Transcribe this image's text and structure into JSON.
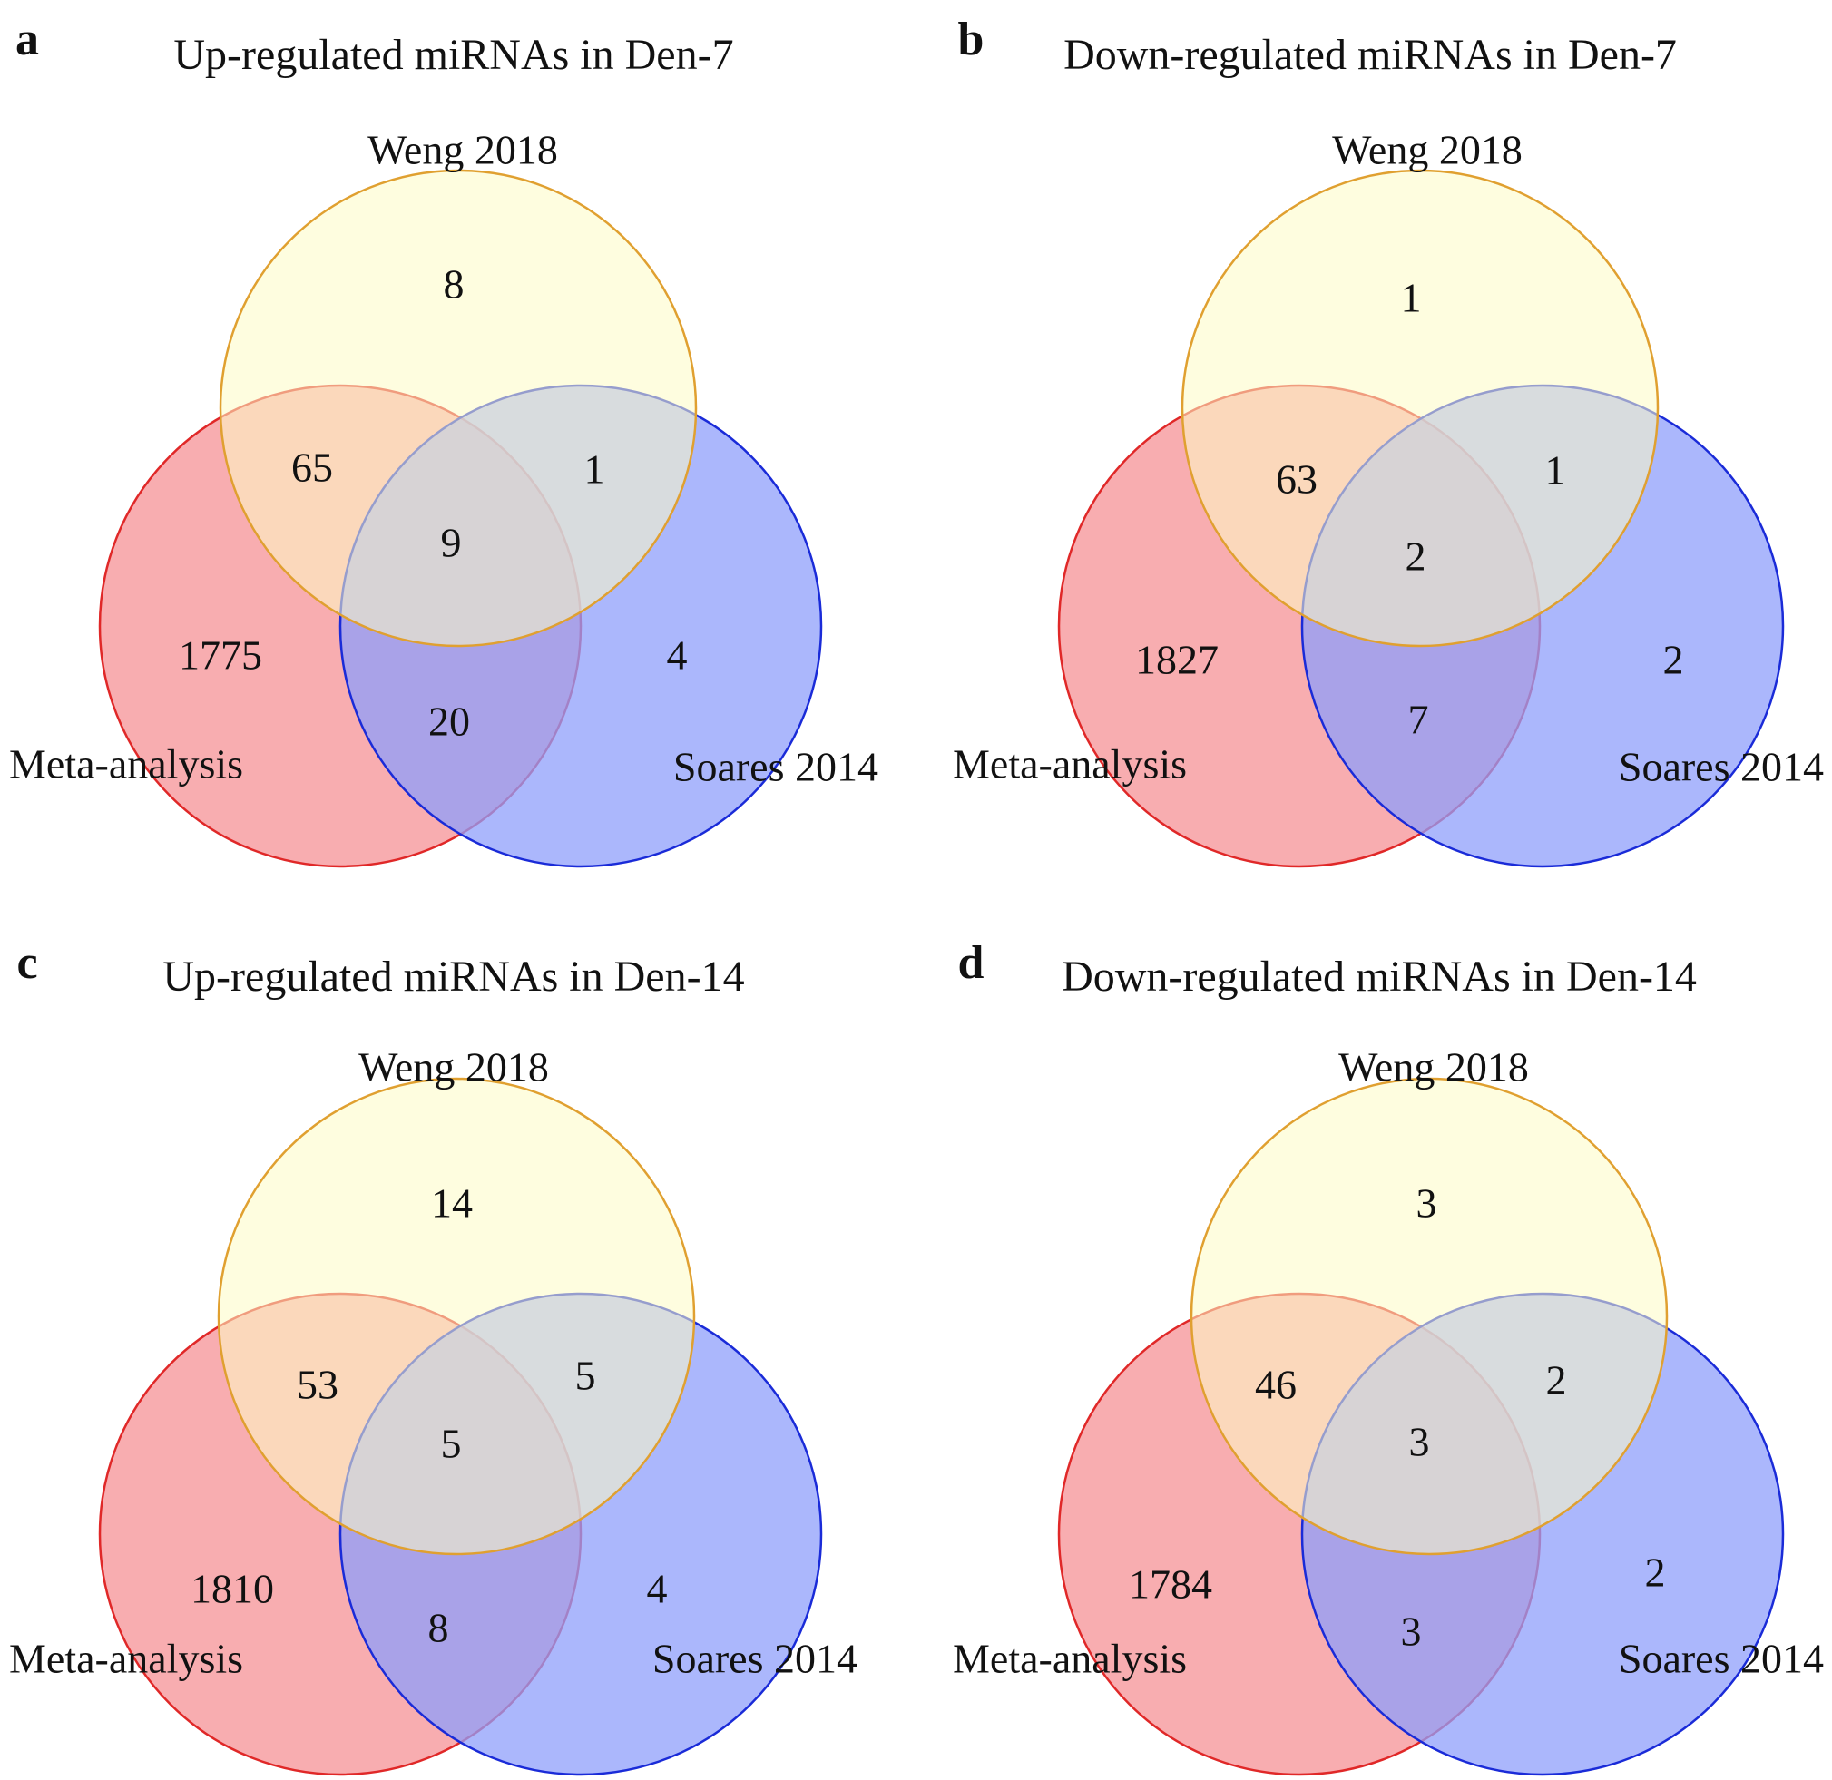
{
  "colors": {
    "weng_fill": "#fdfcc4",
    "weng_stroke": "#e0a030",
    "meta_fill": "#f58a8e",
    "meta_stroke": "#e02828",
    "soares_fill": "#8f9ffb",
    "soares_stroke": "#1a2bd8"
  },
  "panels": [
    {
      "letter": "a",
      "title": "Up-regulated miRNAs in Den-7",
      "sets": {
        "top": "Weng 2018",
        "left": "Meta-analysis",
        "right": "Soares 2014"
      },
      "counts": {
        "top_only": "8",
        "left_only": "1775",
        "right_only": "4",
        "top_left": "65",
        "top_right": "1",
        "left_right": "20",
        "all": "9"
      }
    },
    {
      "letter": "b",
      "title": "Down-regulated miRNAs in Den-7",
      "sets": {
        "top": "Weng 2018",
        "left": "Meta-analysis",
        "right": "Soares 2014"
      },
      "counts": {
        "top_only": "1",
        "left_only": "1827",
        "right_only": "2",
        "top_left": "63",
        "top_right": "1",
        "left_right": "7",
        "all": "2"
      }
    },
    {
      "letter": "c",
      "title": "Up-regulated miRNAs in Den-14",
      "sets": {
        "top": "Weng 2018",
        "left": "Meta-analysis",
        "right": "Soares 2014"
      },
      "counts": {
        "top_only": "14",
        "left_only": "1810",
        "right_only": "4",
        "top_left": "53",
        "top_right": "5",
        "left_right": "8",
        "all": "5"
      }
    },
    {
      "letter": "d",
      "title": "Down-regulated miRNAs in Den-14",
      "sets": {
        "top": "Weng 2018",
        "left": "Meta-analysis",
        "right": "Soares 2014"
      },
      "counts": {
        "top_only": "3",
        "left_only": "1784",
        "right_only": "2",
        "top_left": "46",
        "top_right": "2",
        "left_right": "3",
        "all": "3"
      }
    }
  ]
}
